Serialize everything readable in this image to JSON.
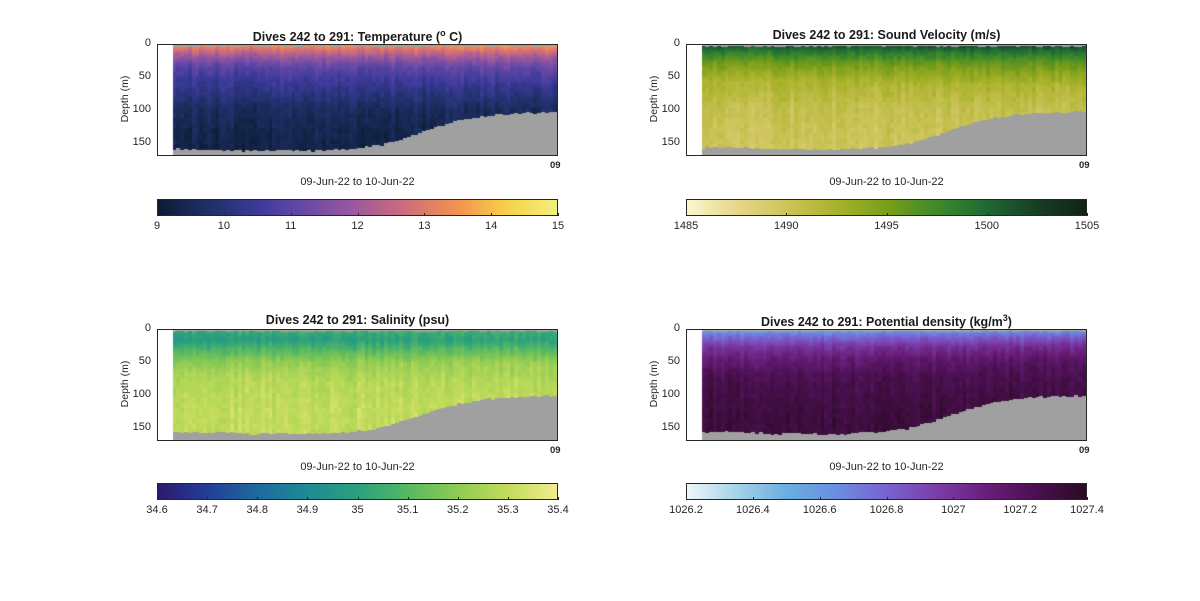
{
  "chart_data": [
    {
      "type": "heatmap",
      "title_text": "Dives 242 to 291: Temperature (",
      "title_sup": "o",
      "title_suffix": " C)",
      "xlabel": "09-Jun-22 to 10-Jun-22",
      "x_end_tick": "09",
      "ylabel": "Depth (m)",
      "yticks": [
        "0",
        "50",
        "100",
        "150"
      ],
      "ylim": [
        0,
        170
      ],
      "clim": [
        9,
        15
      ],
      "colorbar_ticks": [
        "9",
        "10",
        "11",
        "12",
        "13",
        "14",
        "15"
      ],
      "colormap": [
        "#0b1c33",
        "#1e2f66",
        "#3b3a9a",
        "#6a4aa8",
        "#a05a9a",
        "#d06e7a",
        "#f2934f",
        "#f7d24a",
        "#f0f07a"
      ],
      "values_by_depth": [
        {
          "depth": 0,
          "value": 13.4
        },
        {
          "depth": 10,
          "value": 12.6
        },
        {
          "depth": 20,
          "value": 11.8
        },
        {
          "depth": 35,
          "value": 11.0
        },
        {
          "depth": 50,
          "value": 10.6
        },
        {
          "depth": 75,
          "value": 10.1
        },
        {
          "depth": 100,
          "value": 9.6
        },
        {
          "depth": 150,
          "value": 9.3
        }
      ],
      "bottom_profile": [
        160,
        160,
        162,
        163,
        162,
        163,
        162,
        160,
        155,
        145,
        130,
        118,
        110,
        106,
        104,
        103
      ]
    },
    {
      "type": "heatmap",
      "title_text": "Dives 242 to 291: Sound Velocity (m/s)",
      "title_sup": "",
      "title_suffix": "",
      "xlabel": "09-Jun-22 to 10-Jun-22",
      "x_end_tick": "09",
      "ylabel": "Depth (m)",
      "yticks": [
        "0",
        "50",
        "100",
        "150"
      ],
      "ylim": [
        0,
        170
      ],
      "clim": [
        1485,
        1505
      ],
      "colorbar_ticks": [
        "1485",
        "1490",
        "1495",
        "1500",
        "1505"
      ],
      "colormap": [
        "#fbf7cf",
        "#e6d68a",
        "#cdc45a",
        "#a8b22a",
        "#7a9e1a",
        "#3f8a2a",
        "#1f6a34",
        "#163f24",
        "#0f2418"
      ],
      "values_by_depth": [
        {
          "depth": 0,
          "value": 1501.5
        },
        {
          "depth": 10,
          "value": 1499.0
        },
        {
          "depth": 25,
          "value": 1496.0
        },
        {
          "depth": 40,
          "value": 1494.0
        },
        {
          "depth": 60,
          "value": 1492.0
        },
        {
          "depth": 100,
          "value": 1490.5
        },
        {
          "depth": 150,
          "value": 1490.0
        }
      ],
      "bottom_profile": [
        158,
        158,
        159,
        161,
        160,
        161,
        160,
        158,
        153,
        142,
        128,
        116,
        109,
        105,
        103,
        102
      ]
    },
    {
      "type": "heatmap",
      "title_text": "Dives 242 to 291: Salinity (psu)",
      "title_sup": "",
      "title_suffix": "",
      "xlabel": "09-Jun-22 to 10-Jun-22",
      "x_end_tick": "09",
      "ylabel": "Depth (m)",
      "yticks": [
        "0",
        "50",
        "100",
        "150"
      ],
      "ylim": [
        0,
        170
      ],
      "clim": [
        34.6,
        35.4
      ],
      "colorbar_ticks": [
        "34.6",
        "34.7",
        "34.8",
        "34.9",
        "35",
        "35.1",
        "35.2",
        "35.3",
        "35.4"
      ],
      "colormap": [
        "#2a1a6e",
        "#243e96",
        "#1e6a9e",
        "#1e8a96",
        "#2aa07e",
        "#56b864",
        "#8ecb52",
        "#c2db5a",
        "#f2ec8e"
      ],
      "values_by_depth": [
        {
          "depth": 0,
          "value": 35.05
        },
        {
          "depth": 15,
          "value": 35.0
        },
        {
          "depth": 30,
          "value": 35.1
        },
        {
          "depth": 50,
          "value": 35.22
        },
        {
          "depth": 80,
          "value": 35.28
        },
        {
          "depth": 120,
          "value": 35.3
        },
        {
          "depth": 150,
          "value": 35.3
        }
      ],
      "bottom_profile": [
        157,
        157,
        158,
        160,
        159,
        160,
        159,
        157,
        152,
        141,
        127,
        115,
        108,
        104,
        102,
        101
      ]
    },
    {
      "type": "heatmap",
      "title_text": "Dives 242 to 291: Potential density (kg/m",
      "title_sup": "3",
      "title_suffix": ")",
      "xlabel": "09-Jun-22 to 10-Jun-22",
      "x_end_tick": "09",
      "ylabel": "Depth (m)",
      "yticks": [
        "0",
        "50",
        "100",
        "150"
      ],
      "ylim": [
        0,
        170
      ],
      "clim": [
        1026.2,
        1027.4
      ],
      "colorbar_ticks": [
        "1026.2",
        "1026.4",
        "1026.6",
        "1026.8",
        "1027",
        "1027.2",
        "1027.4"
      ],
      "colormap": [
        "#eef6fa",
        "#a6d2ea",
        "#6aaee0",
        "#6a8ee0",
        "#7a62d2",
        "#7a3ea8",
        "#6a1e7a",
        "#4a1050",
        "#2a0a24"
      ],
      "values_by_depth": [
        {
          "depth": 0,
          "value": 1026.6
        },
        {
          "depth": 10,
          "value": 1026.8
        },
        {
          "depth": 25,
          "value": 1027.0
        },
        {
          "depth": 45,
          "value": 1027.15
        },
        {
          "depth": 70,
          "value": 1027.25
        },
        {
          "depth": 110,
          "value": 1027.3
        },
        {
          "depth": 150,
          "value": 1027.32
        }
      ],
      "bottom_profile": [
        157,
        157,
        158,
        160,
        159,
        161,
        159,
        157,
        152,
        141,
        127,
        115,
        108,
        104,
        102,
        101
      ]
    }
  ]
}
